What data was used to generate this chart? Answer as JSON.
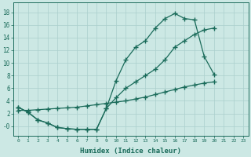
{
  "xlabel": "Humidex (Indice chaleur)",
  "bg_color": "#cce8e4",
  "grid_color": "#aacfcc",
  "line_color": "#1a6b5a",
  "line1_x": [
    0,
    1,
    2,
    3,
    4,
    5,
    6,
    7,
    8,
    9,
    10,
    11,
    12,
    13,
    14,
    15,
    16,
    17,
    18,
    19,
    20,
    22
  ],
  "line1_y": [
    3.0,
    2.2,
    1.0,
    0.5,
    -0.2,
    -0.4,
    -0.5,
    -0.5,
    -0.5,
    2.8,
    7.2,
    10.5,
    12.5,
    13.5,
    15.5,
    17.0,
    17.8,
    17.0,
    16.8,
    11.0,
    8.2,
    null
  ],
  "line2_x": [
    0,
    1,
    2,
    3,
    4,
    5,
    6,
    7,
    8,
    9,
    10,
    11,
    12,
    13,
    14,
    15,
    16,
    17,
    18,
    19,
    20,
    22
  ],
  "line2_y": [
    3.0,
    2.2,
    1.0,
    0.5,
    -0.2,
    -0.4,
    -0.5,
    -0.5,
    -0.5,
    2.8,
    4.5,
    6.0,
    7.0,
    8.0,
    9.0,
    10.5,
    12.5,
    13.5,
    14.5,
    15.2,
    15.5,
    null
  ],
  "line3_x": [
    0,
    1,
    2,
    3,
    4,
    5,
    6,
    7,
    8,
    9,
    10,
    11,
    12,
    13,
    14,
    15,
    16,
    17,
    18,
    19,
    20,
    22
  ],
  "line3_y": [
    2.5,
    2.5,
    2.6,
    2.7,
    2.8,
    2.9,
    3.0,
    3.2,
    3.4,
    3.6,
    3.8,
    4.0,
    4.3,
    4.6,
    5.0,
    5.4,
    5.8,
    6.2,
    6.5,
    6.8,
    7.0,
    null
  ],
  "ylim": [
    -1.5,
    19.5
  ],
  "xlim": [
    -0.5,
    23.5
  ],
  "ytick_vals": [
    0,
    2,
    4,
    6,
    8,
    10,
    12,
    14,
    16,
    18
  ],
  "ytick_labels": [
    "-0",
    "2",
    "4",
    "6",
    "8",
    "10",
    "12",
    "14",
    "16",
    "18"
  ],
  "xticks": [
    0,
    1,
    2,
    3,
    4,
    5,
    6,
    7,
    8,
    9,
    10,
    11,
    12,
    13,
    14,
    15,
    16,
    17,
    18,
    19,
    20,
    21,
    22,
    23
  ]
}
